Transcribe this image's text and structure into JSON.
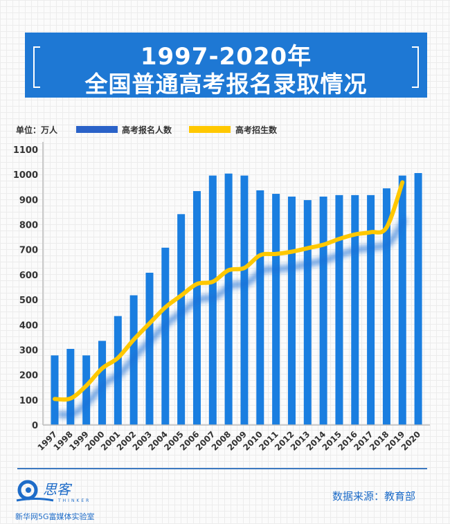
{
  "header": {
    "title_line1": "1997-2020年",
    "title_line2": "全国普通高考报名录取情况"
  },
  "chart_data": {
    "type": "bar",
    "title": "1997-2020年 全国普通高考报名录取情况",
    "unit_label": "单位：万人",
    "xlabel": "",
    "ylabel": "",
    "ylim": [
      0,
      1100
    ],
    "yticks": [
      0,
      100,
      200,
      300,
      400,
      500,
      600,
      700,
      800,
      900,
      1000,
      1100
    ],
    "grid": false,
    "legend_position": "top",
    "categories": [
      "1997",
      "1998",
      "1999",
      "2000",
      "2001",
      "2002",
      "2003",
      "2004",
      "2005",
      "2006",
      "2007",
      "2008",
      "2009",
      "2010",
      "2011",
      "2012",
      "2013",
      "2014",
      "2015",
      "2016",
      "2017",
      "2018",
      "2019",
      "2020"
    ],
    "series": [
      {
        "name": "高考报名人数",
        "type": "bar",
        "color": "#1a7ee0",
        "values": [
          278,
          304,
          278,
          336,
          435,
          518,
          608,
          708,
          842,
          934,
          996,
          1004,
          996,
          937,
          923,
          912,
          898,
          912,
          918,
          918,
          918,
          945,
          996,
          1006
        ]
      },
      {
        "name": "高考招生数",
        "type": "line",
        "color": "#ffc800",
        "values": [
          104,
          106,
          157,
          226,
          268,
          341,
          406,
          470,
          517,
          563,
          572,
          618,
          627,
          678,
          683,
          692,
          706,
          720,
          743,
          761,
          770,
          789,
          969,
          null
        ]
      }
    ]
  },
  "footer": {
    "logo_text": "思客",
    "logo_sub": "THINKER",
    "org": "新华网5G富媒体实验室",
    "source": "数据来源：教育部"
  }
}
